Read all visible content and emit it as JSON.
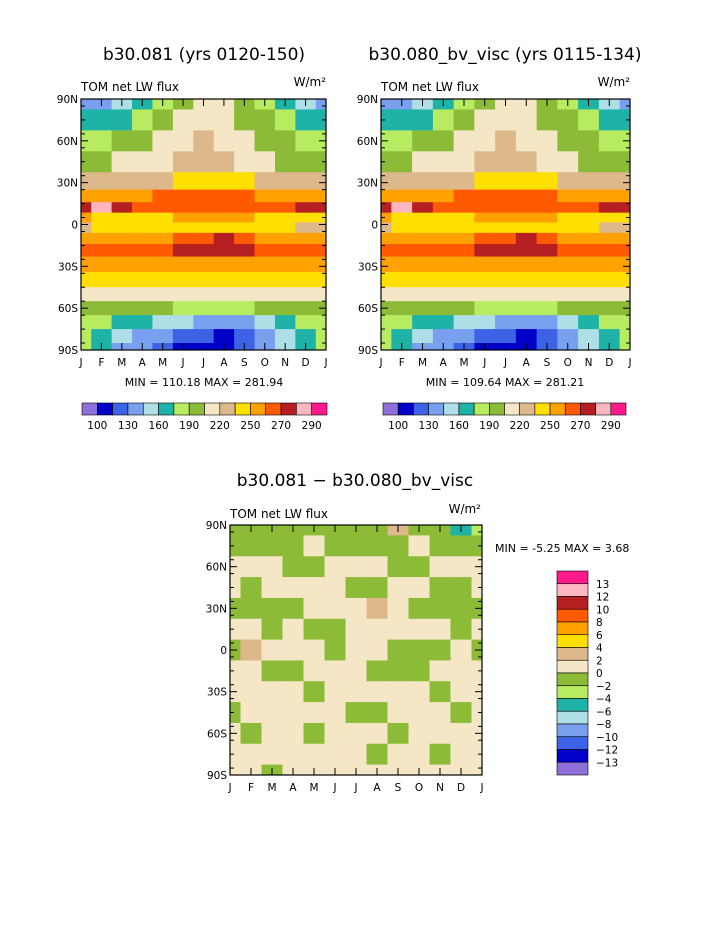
{
  "palette": [
    "#8e6fd9",
    "#0000c8",
    "#3d62e6",
    "#79a0ef",
    "#aedfe6",
    "#1fb2a6",
    "#b7ec60",
    "#8cbb38",
    "#f5e7c6",
    "#dcb88a",
    "#ffdf00",
    "#ffa100",
    "#ff5a00",
    "#b51f22",
    "#ffb6c1",
    "#ff1a8c"
  ],
  "chart_data": [
    {
      "type": "heatmap",
      "title": "b30.081 (yrs 0120-150)",
      "field_label": "TOM net LW flux",
      "units": "W/m²",
      "x": [
        "J",
        "F",
        "M",
        "A",
        "M",
        "J",
        "J",
        "A",
        "S",
        "O",
        "N",
        "D",
        "J"
      ],
      "y": [
        "90N",
        "60N",
        "30N",
        "0",
        "30S",
        "60S",
        "90S"
      ],
      "ylim": [
        -90,
        90
      ],
      "stats_text": "MIN = 110.18 MAX = 281.94",
      "min": 110.18,
      "max": 281.94,
      "legend_labels": [
        "100",
        "130",
        "160",
        "190",
        "220",
        "250",
        "270",
        "290"
      ],
      "legend_levels": [
        100,
        110,
        120,
        130,
        140,
        150,
        160,
        170,
        180,
        190,
        200,
        210,
        220,
        230,
        240,
        250,
        260,
        270,
        280,
        290
      ],
      "bands": [
        {
          "lat": 90,
          "values": [
            3,
            3,
            4,
            5,
            6,
            7,
            8,
            8,
            7,
            6,
            5,
            4,
            3
          ]
        },
        {
          "lat": 75,
          "values": [
            5,
            5,
            5,
            6,
            7,
            8,
            8,
            8,
            7,
            7,
            6,
            5,
            5
          ]
        },
        {
          "lat": 60,
          "values": [
            6,
            6,
            7,
            7,
            8,
            8,
            9,
            8,
            8,
            7,
            7,
            6,
            6
          ]
        },
        {
          "lat": 45,
          "values": [
            7,
            7,
            8,
            8,
            8,
            9,
            9,
            9,
            8,
            8,
            7,
            7,
            7
          ]
        },
        {
          "lat": 30,
          "values": [
            9,
            9,
            9,
            9,
            9,
            10,
            10,
            10,
            10,
            9,
            9,
            9,
            9
          ]
        },
        {
          "lat": 20,
          "values": [
            11,
            11,
            11,
            11,
            12,
            12,
            12,
            12,
            12,
            11,
            11,
            11,
            11
          ]
        },
        {
          "lat": 12,
          "values": [
            13,
            14,
            13,
            12,
            12,
            12,
            12,
            12,
            12,
            12,
            12,
            13,
            13
          ]
        },
        {
          "lat": 5,
          "values": [
            11,
            10,
            10,
            10,
            10,
            11,
            11,
            11,
            11,
            10,
            10,
            10,
            10
          ]
        },
        {
          "lat": -2,
          "values": [
            9,
            10,
            10,
            10,
            10,
            10,
            10,
            10,
            10,
            10,
            10,
            9,
            9
          ]
        },
        {
          "lat": -10,
          "values": [
            11,
            11,
            11,
            11,
            11,
            12,
            12,
            13,
            12,
            11,
            11,
            11,
            11
          ]
        },
        {
          "lat": -18,
          "values": [
            12,
            12,
            12,
            12,
            12,
            13,
            13,
            13,
            13,
            12,
            12,
            12,
            12
          ]
        },
        {
          "lat": -28,
          "values": [
            11,
            11,
            11,
            11,
            11,
            11,
            11,
            11,
            11,
            11,
            11,
            11,
            11
          ]
        },
        {
          "lat": -40,
          "values": [
            10,
            10,
            10,
            10,
            10,
            10,
            10,
            10,
            10,
            10,
            10,
            10,
            10
          ]
        },
        {
          "lat": -50,
          "values": [
            8,
            8,
            8,
            8,
            8,
            8,
            8,
            8,
            8,
            8,
            8,
            8,
            8
          ]
        },
        {
          "lat": -60,
          "values": [
            7,
            7,
            7,
            7,
            7,
            6,
            6,
            6,
            6,
            7,
            7,
            7,
            7
          ]
        },
        {
          "lat": -70,
          "values": [
            6,
            6,
            5,
            5,
            4,
            4,
            3,
            3,
            3,
            4,
            5,
            6,
            6
          ]
        },
        {
          "lat": -80,
          "values": [
            6,
            5,
            4,
            3,
            3,
            2,
            2,
            1,
            2,
            3,
            4,
            5,
            6
          ]
        },
        {
          "lat": -90,
          "values": [
            6,
            5,
            3,
            3,
            2,
            1,
            1,
            1,
            2,
            3,
            4,
            5,
            6
          ]
        }
      ]
    },
    {
      "type": "heatmap",
      "title": "b30.080_bv_visc (yrs 0115-134)",
      "field_label": "TOM net LW flux",
      "units": "W/m²",
      "x": [
        "J",
        "F",
        "M",
        "A",
        "M",
        "J",
        "J",
        "A",
        "S",
        "O",
        "N",
        "D",
        "J"
      ],
      "y": [
        "90N",
        "60N",
        "30N",
        "0",
        "30S",
        "60S",
        "90S"
      ],
      "ylim": [
        -90,
        90
      ],
      "stats_text": "MIN = 109.64 MAX = 281.21",
      "min": 109.64,
      "max": 281.21,
      "legend_labels": [
        "100",
        "130",
        "160",
        "190",
        "220",
        "250",
        "270",
        "290"
      ],
      "legend_levels": [
        100,
        110,
        120,
        130,
        140,
        150,
        160,
        170,
        180,
        190,
        200,
        210,
        220,
        230,
        240,
        250,
        260,
        270,
        280,
        290
      ],
      "bands": [
        {
          "lat": 90,
          "values": [
            3,
            3,
            4,
            5,
            6,
            7,
            8,
            8,
            7,
            6,
            5,
            4,
            3
          ]
        },
        {
          "lat": 75,
          "values": [
            5,
            5,
            5,
            6,
            7,
            8,
            8,
            8,
            7,
            7,
            6,
            5,
            5
          ]
        },
        {
          "lat": 60,
          "values": [
            6,
            6,
            7,
            7,
            8,
            8,
            9,
            8,
            8,
            7,
            7,
            6,
            6
          ]
        },
        {
          "lat": 45,
          "values": [
            7,
            7,
            8,
            8,
            8,
            9,
            9,
            9,
            8,
            8,
            7,
            7,
            7
          ]
        },
        {
          "lat": 30,
          "values": [
            9,
            9,
            9,
            9,
            9,
            10,
            10,
            10,
            10,
            9,
            9,
            9,
            9
          ]
        },
        {
          "lat": 20,
          "values": [
            11,
            11,
            11,
            11,
            12,
            12,
            12,
            12,
            12,
            11,
            11,
            11,
            11
          ]
        },
        {
          "lat": 12,
          "values": [
            13,
            14,
            13,
            12,
            12,
            12,
            12,
            12,
            12,
            12,
            12,
            13,
            13
          ]
        },
        {
          "lat": 5,
          "values": [
            11,
            10,
            10,
            10,
            10,
            11,
            11,
            11,
            11,
            10,
            10,
            10,
            10
          ]
        },
        {
          "lat": -2,
          "values": [
            9,
            10,
            10,
            10,
            10,
            10,
            10,
            10,
            10,
            10,
            10,
            9,
            9
          ]
        },
        {
          "lat": -10,
          "values": [
            11,
            11,
            11,
            11,
            11,
            12,
            12,
            13,
            12,
            11,
            11,
            11,
            11
          ]
        },
        {
          "lat": -18,
          "values": [
            12,
            12,
            12,
            12,
            12,
            13,
            13,
            13,
            13,
            12,
            12,
            12,
            12
          ]
        },
        {
          "lat": -28,
          "values": [
            11,
            11,
            11,
            11,
            11,
            11,
            11,
            11,
            11,
            11,
            11,
            11,
            11
          ]
        },
        {
          "lat": -40,
          "values": [
            10,
            10,
            10,
            10,
            10,
            10,
            10,
            10,
            10,
            10,
            10,
            10,
            10
          ]
        },
        {
          "lat": -50,
          "values": [
            8,
            8,
            8,
            8,
            8,
            8,
            8,
            8,
            8,
            8,
            8,
            8,
            8
          ]
        },
        {
          "lat": -60,
          "values": [
            7,
            7,
            7,
            7,
            7,
            6,
            6,
            6,
            6,
            7,
            7,
            7,
            7
          ]
        },
        {
          "lat": -70,
          "values": [
            6,
            6,
            5,
            5,
            4,
            4,
            3,
            3,
            3,
            4,
            5,
            6,
            6
          ]
        },
        {
          "lat": -80,
          "values": [
            6,
            5,
            4,
            3,
            3,
            2,
            2,
            1,
            2,
            3,
            4,
            5,
            6
          ]
        },
        {
          "lat": -90,
          "values": [
            6,
            5,
            3,
            3,
            2,
            1,
            1,
            1,
            2,
            3,
            4,
            5,
            6
          ]
        }
      ]
    },
    {
      "type": "heatmap",
      "title": "b30.081 − b30.080_bv_visc",
      "field_label": "TOM net LW flux",
      "units": "W/m²",
      "x": [
        "J",
        "F",
        "M",
        "A",
        "M",
        "J",
        "J",
        "A",
        "S",
        "O",
        "N",
        "D",
        "J"
      ],
      "y": [
        "90N",
        "60N",
        "30N",
        "0",
        "30S",
        "60S",
        "90S"
      ],
      "ylim": [
        -90,
        90
      ],
      "stats_text": "MIN =   -5.25 MAX =    3.68",
      "min": -5.25,
      "max": 3.68,
      "legend_labels": [
        "13",
        "12",
        "10",
        "8",
        "6",
        "4",
        "2",
        "0",
        "−2",
        "−4",
        "−6",
        "−8",
        "−10",
        "−12",
        "−13"
      ],
      "legend_levels": [
        13,
        12,
        10,
        8,
        6,
        4,
        2,
        0,
        -2,
        -4,
        -6,
        -8,
        -10,
        -12,
        -13
      ],
      "bands": [
        {
          "lat": 90,
          "values": [
            7,
            7,
            7,
            7,
            7,
            7,
            7,
            7,
            9,
            7,
            7,
            5,
            6
          ]
        },
        {
          "lat": 75,
          "values": [
            7,
            7,
            7,
            7,
            8,
            7,
            7,
            7,
            7,
            8,
            7,
            7,
            7
          ]
        },
        {
          "lat": 60,
          "values": [
            8,
            8,
            8,
            7,
            7,
            8,
            8,
            8,
            7,
            7,
            8,
            8,
            8
          ]
        },
        {
          "lat": 45,
          "values": [
            8,
            7,
            8,
            8,
            8,
            8,
            7,
            7,
            8,
            8,
            7,
            7,
            8
          ]
        },
        {
          "lat": 30,
          "values": [
            7,
            7,
            7,
            7,
            8,
            8,
            8,
            9,
            8,
            7,
            7,
            7,
            7
          ]
        },
        {
          "lat": 15,
          "values": [
            8,
            8,
            7,
            8,
            7,
            7,
            8,
            8,
            8,
            8,
            8,
            7,
            8
          ]
        },
        {
          "lat": 0,
          "values": [
            7,
            9,
            8,
            8,
            8,
            7,
            8,
            8,
            7,
            7,
            7,
            8,
            7
          ]
        },
        {
          "lat": -15,
          "values": [
            8,
            8,
            7,
            7,
            8,
            8,
            8,
            7,
            7,
            7,
            8,
            8,
            8
          ]
        },
        {
          "lat": -30,
          "values": [
            8,
            8,
            8,
            8,
            7,
            8,
            8,
            8,
            8,
            8,
            7,
            8,
            8
          ]
        },
        {
          "lat": -45,
          "values": [
            7,
            8,
            8,
            8,
            8,
            8,
            7,
            7,
            8,
            8,
            8,
            7,
            8
          ]
        },
        {
          "lat": -60,
          "values": [
            8,
            7,
            8,
            8,
            7,
            8,
            8,
            8,
            7,
            8,
            8,
            8,
            8
          ]
        },
        {
          "lat": -75,
          "values": [
            8,
            8,
            8,
            8,
            8,
            8,
            8,
            7,
            8,
            8,
            7,
            8,
            8
          ]
        },
        {
          "lat": -90,
          "values": [
            8,
            8,
            7,
            8,
            8,
            8,
            8,
            8,
            8,
            8,
            8,
            8,
            8
          ]
        }
      ]
    }
  ]
}
